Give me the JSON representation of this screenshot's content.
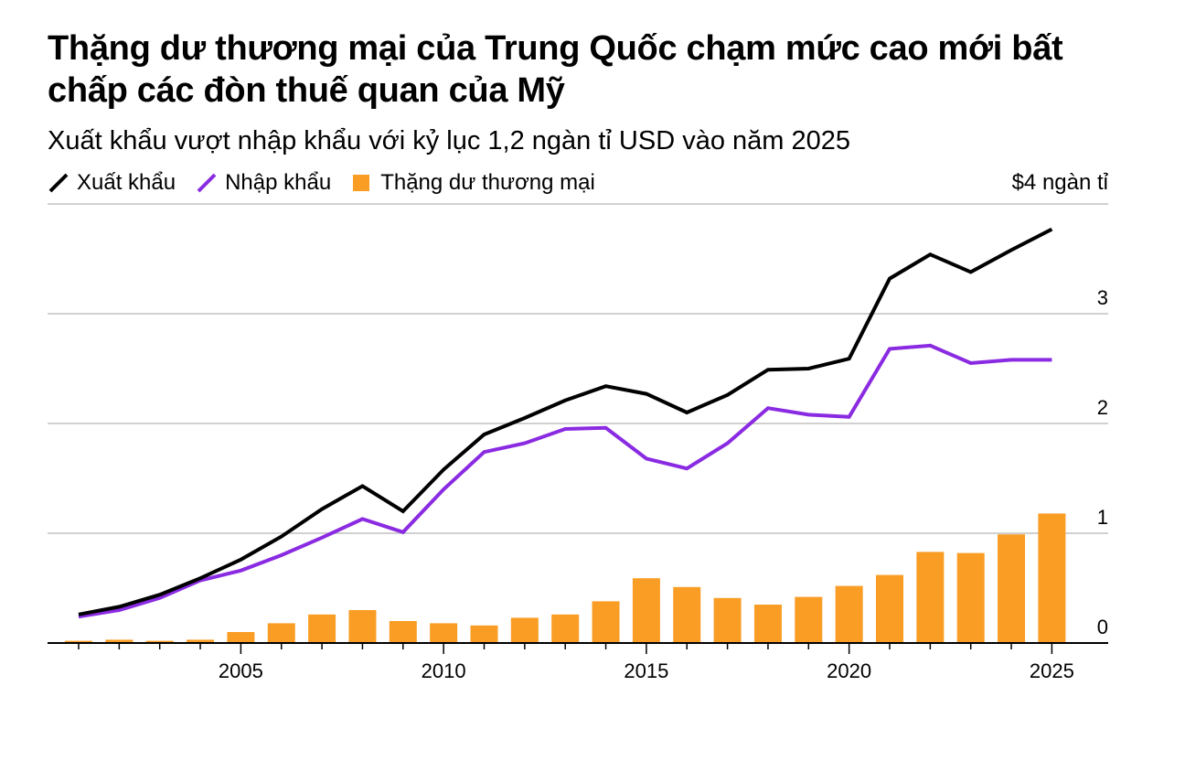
{
  "chart_data": {
    "type": "bar+line",
    "title": "Thặng dư thương mại của Trung Quốc chạm mức cao mới bất chấp các đòn thuế quan của Mỹ",
    "subtitle": "Xuất khẩu vượt nhập khẩu với kỷ lục 1,2 ngàn tỉ USD vào năm 2025",
    "unit_label": "$4 ngàn tỉ",
    "legend_placement": "top-left",
    "grid": true,
    "x": [
      2001,
      2002,
      2003,
      2004,
      2005,
      2006,
      2007,
      2008,
      2009,
      2010,
      2011,
      2012,
      2013,
      2014,
      2015,
      2016,
      2017,
      2018,
      2019,
      2020,
      2021,
      2022,
      2023,
      2024,
      2025
    ],
    "x_ticks": [
      "2005",
      "2010",
      "2015",
      "2020",
      "2025"
    ],
    "y_ticks": [
      "0",
      "1",
      "2",
      "3"
    ],
    "ylim": [
      0,
      4
    ],
    "series": [
      {
        "name": "Xuất khẩu",
        "type": "line",
        "color": "#000000",
        "values": [
          0.26,
          0.33,
          0.44,
          0.59,
          0.76,
          0.97,
          1.22,
          1.43,
          1.2,
          1.58,
          1.9,
          2.05,
          2.21,
          2.34,
          2.27,
          2.1,
          2.26,
          2.49,
          2.5,
          2.59,
          3.32,
          3.54,
          3.38,
          3.58,
          3.77
        ]
      },
      {
        "name": "Nhập khẩu",
        "type": "line",
        "color": "#8a2be2",
        "values": [
          0.24,
          0.3,
          0.41,
          0.57,
          0.66,
          0.8,
          0.96,
          1.13,
          1.01,
          1.4,
          1.74,
          1.82,
          1.95,
          1.96,
          1.68,
          1.59,
          1.82,
          2.14,
          2.08,
          2.06,
          2.68,
          2.71,
          2.55,
          2.58,
          2.58
        ]
      },
      {
        "name": "Thặng dư thương mại",
        "type": "bar",
        "color": "#f99d25",
        "values": [
          0.02,
          0.03,
          0.02,
          0.03,
          0.1,
          0.18,
          0.26,
          0.3,
          0.2,
          0.18,
          0.16,
          0.23,
          0.26,
          0.38,
          0.59,
          0.51,
          0.41,
          0.35,
          0.42,
          0.52,
          0.62,
          0.83,
          0.82,
          0.99,
          1.18
        ]
      }
    ]
  }
}
